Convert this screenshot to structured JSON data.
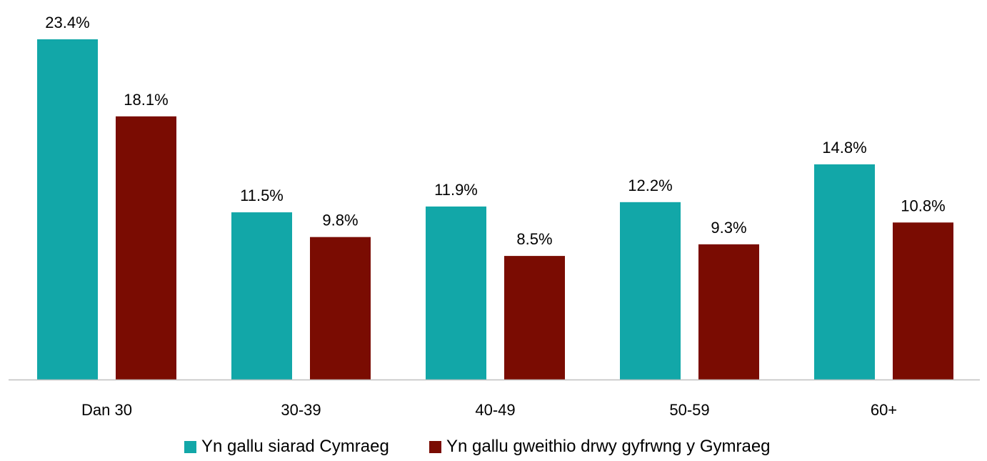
{
  "chart_data": {
    "type": "bar",
    "categories": [
      "Dan 30",
      "30-39",
      "40-49",
      "50-59",
      "60+"
    ],
    "series": [
      {
        "name": "Yn gallu siarad Cymraeg",
        "color": "#12A7A8",
        "values": [
          23.4,
          11.5,
          11.9,
          12.2,
          14.8
        ],
        "labels": [
          "23.4%",
          "11.5%",
          "11.9%",
          "12.2%",
          "14.8%"
        ]
      },
      {
        "name": "Yn gallu gweithio drwy gyfrwng y Gymraeg",
        "color": "#7A0C02",
        "values": [
          18.1,
          9.8,
          8.5,
          9.3,
          10.8
        ],
        "labels": [
          "18.1%",
          "9.8%",
          "8.5%",
          "9.3%",
          "10.8%"
        ]
      }
    ],
    "title": "",
    "xlabel": "",
    "ylabel": "",
    "ylim": [
      0,
      23.4
    ],
    "grid": false,
    "legend_position": "bottom",
    "axis_color": "#BFBFBF"
  }
}
